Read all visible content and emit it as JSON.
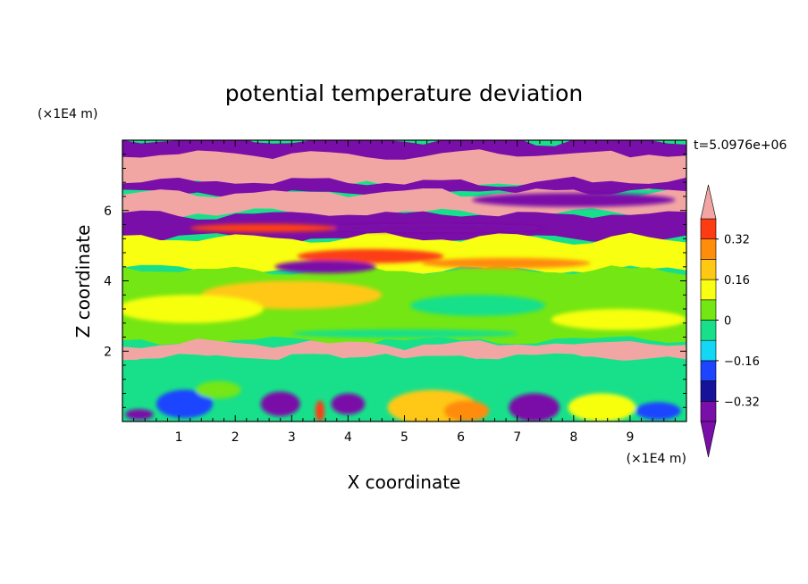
{
  "chart_data": {
    "type": "heatmap",
    "title": "potential temperature deviation",
    "xlabel": "X coordinate",
    "ylabel": "Z coordinate",
    "x_unit": "(×1E4 m)",
    "y_unit": "(×1E4 m)",
    "time_label": "t=5.0976e+06",
    "xlim": [
      0,
      10
    ],
    "ylim": [
      0,
      8
    ],
    "x_ticks": [
      "1",
      "2",
      "3",
      "4",
      "5",
      "6",
      "7",
      "8",
      "9"
    ],
    "y_ticks": [
      "2",
      "4",
      "6"
    ],
    "colorbar": {
      "levels": [
        -0.4,
        -0.32,
        -0.24,
        -0.16,
        -0.08,
        0,
        0.08,
        0.16,
        0.24,
        0.32,
        0.4
      ],
      "tick_labels": [
        "0.32",
        "0.16",
        "0",
        "−0.16",
        "−0.32"
      ],
      "tick_values": [
        0.32,
        0.16,
        0,
        -0.16,
        -0.32
      ],
      "colors": [
        "#7a0ea8",
        "#16129a",
        "#1d44ff",
        "#14d7f5",
        "#18e08a",
        "#74e613",
        "#f8ff10",
        "#ffc812",
        "#ff8c0a",
        "#fd3c14",
        "#f2a6a4"
      ],
      "extend": "both"
    },
    "layers": [
      {
        "z_from": 7.2,
        "z_to": 8.0,
        "value": -0.45
      },
      {
        "z_from": 6.7,
        "z_to": 7.6,
        "value": 0.45
      },
      {
        "z_from": 6.5,
        "z_to": 6.8,
        "value": -0.45
      },
      {
        "z_from": 5.9,
        "z_to": 6.5,
        "value": 0.45
      },
      {
        "z_from": 5.2,
        "z_to": 5.9,
        "value": -0.45
      },
      {
        "z_from": 4.3,
        "z_to": 5.2,
        "value": 0.1
      },
      {
        "z_from": 2.3,
        "z_to": 4.3,
        "value": 0.02
      },
      {
        "z_from": 1.8,
        "z_to": 2.2,
        "value": 0.45
      },
      {
        "z_from": 0.0,
        "z_to": 1.8,
        "value": -0.05
      }
    ]
  }
}
